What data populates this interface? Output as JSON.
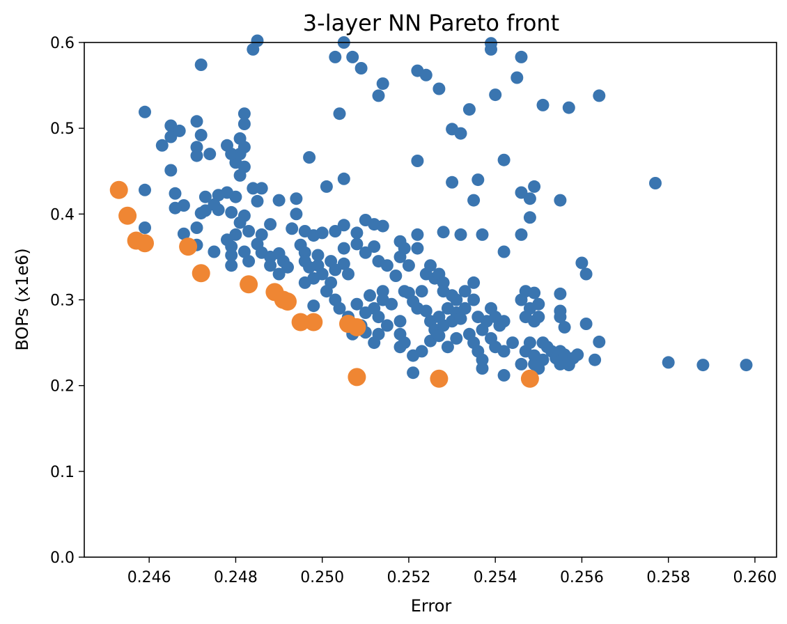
{
  "chart_data": {
    "type": "scatter",
    "title": "3-layer NN Pareto front",
    "xlabel": "Error",
    "ylabel": "BOPs (x1e6)",
    "xlim": [
      0.2445,
      0.2605
    ],
    "ylim": [
      0.0,
      0.6
    ],
    "xticks": [
      "0.246",
      "0.248",
      "0.250",
      "0.252",
      "0.254",
      "0.256",
      "0.258",
      "0.260"
    ],
    "yticks": [
      "0.0",
      "0.1",
      "0.2",
      "0.3",
      "0.4",
      "0.5",
      "0.6"
    ],
    "grid": false,
    "series": [
      {
        "color": "#3a75b0",
        "marker_size": "small",
        "points": [
          [
            0.2484,
            0.592
          ],
          [
            0.2485,
            0.602
          ],
          [
            0.2505,
            0.6
          ],
          [
            0.2503,
            0.583
          ],
          [
            0.2507,
            0.583
          ],
          [
            0.2509,
            0.57
          ],
          [
            0.2539,
            0.592
          ],
          [
            0.2539,
            0.599
          ],
          [
            0.2546,
            0.583
          ],
          [
            0.2545,
            0.559
          ],
          [
            0.2522,
            0.567
          ],
          [
            0.2524,
            0.562
          ],
          [
            0.2527,
            0.546
          ],
          [
            0.2514,
            0.552
          ],
          [
            0.2513,
            0.538
          ],
          [
            0.254,
            0.539
          ],
          [
            0.2472,
            0.574
          ],
          [
            0.2459,
            0.519
          ],
          [
            0.2482,
            0.517
          ],
          [
            0.2504,
            0.517
          ],
          [
            0.2534,
            0.522
          ],
          [
            0.2551,
            0.527
          ],
          [
            0.2557,
            0.524
          ],
          [
            0.2564,
            0.538
          ],
          [
            0.253,
            0.499
          ],
          [
            0.2532,
            0.494
          ],
          [
            0.2465,
            0.503
          ],
          [
            0.2467,
            0.497
          ],
          [
            0.2463,
            0.48
          ],
          [
            0.2465,
            0.49
          ],
          [
            0.2471,
            0.508
          ],
          [
            0.2472,
            0.492
          ],
          [
            0.2471,
            0.478
          ],
          [
            0.2471,
            0.468
          ],
          [
            0.2474,
            0.47
          ],
          [
            0.2478,
            0.48
          ],
          [
            0.2481,
            0.488
          ],
          [
            0.2482,
            0.478
          ],
          [
            0.2481,
            0.47
          ],
          [
            0.248,
            0.46
          ],
          [
            0.2482,
            0.455
          ],
          [
            0.2481,
            0.445
          ],
          [
            0.2479,
            0.47
          ],
          [
            0.2482,
            0.505
          ],
          [
            0.2497,
            0.466
          ],
          [
            0.2522,
            0.462
          ],
          [
            0.2542,
            0.463
          ],
          [
            0.2505,
            0.441
          ],
          [
            0.2501,
            0.432
          ],
          [
            0.2536,
            0.44
          ],
          [
            0.253,
            0.437
          ],
          [
            0.2577,
            0.436
          ],
          [
            0.2546,
            0.425
          ],
          [
            0.2549,
            0.432
          ],
          [
            0.2548,
            0.418
          ],
          [
            0.2555,
            0.416
          ],
          [
            0.2535,
            0.416
          ],
          [
            0.2548,
            0.396
          ],
          [
            0.2546,
            0.376
          ],
          [
            0.2465,
            0.451
          ],
          [
            0.2459,
            0.428
          ],
          [
            0.2466,
            0.424
          ],
          [
            0.2468,
            0.41
          ],
          [
            0.2466,
            0.407
          ],
          [
            0.2473,
            0.42
          ],
          [
            0.2476,
            0.422
          ],
          [
            0.2475,
            0.411
          ],
          [
            0.2478,
            0.425
          ],
          [
            0.248,
            0.42
          ],
          [
            0.2484,
            0.43
          ],
          [
            0.2486,
            0.43
          ],
          [
            0.2485,
            0.415
          ],
          [
            0.2473,
            0.404
          ],
          [
            0.2472,
            0.401
          ],
          [
            0.2476,
            0.405
          ],
          [
            0.2471,
            0.384
          ],
          [
            0.2479,
            0.402
          ],
          [
            0.2482,
            0.398
          ],
          [
            0.2481,
            0.39
          ],
          [
            0.2483,
            0.38
          ],
          [
            0.2486,
            0.376
          ],
          [
            0.2488,
            0.388
          ],
          [
            0.249,
            0.416
          ],
          [
            0.2494,
            0.418
          ],
          [
            0.2494,
            0.4
          ],
          [
            0.2493,
            0.383
          ],
          [
            0.2496,
            0.38
          ],
          [
            0.2498,
            0.375
          ],
          [
            0.25,
            0.378
          ],
          [
            0.2503,
            0.38
          ],
          [
            0.2505,
            0.387
          ],
          [
            0.2508,
            0.378
          ],
          [
            0.251,
            0.393
          ],
          [
            0.2512,
            0.388
          ],
          [
            0.2514,
            0.386
          ],
          [
            0.2518,
            0.368
          ],
          [
            0.2522,
            0.376
          ],
          [
            0.2528,
            0.379
          ],
          [
            0.2532,
            0.376
          ],
          [
            0.2537,
            0.376
          ],
          [
            0.2542,
            0.356
          ],
          [
            0.2459,
            0.384
          ],
          [
            0.2468,
            0.377
          ],
          [
            0.2471,
            0.364
          ],
          [
            0.2475,
            0.356
          ],
          [
            0.2478,
            0.37
          ],
          [
            0.248,
            0.376
          ],
          [
            0.2479,
            0.362
          ],
          [
            0.2479,
            0.352
          ],
          [
            0.2479,
            0.34
          ],
          [
            0.2482,
            0.356
          ],
          [
            0.2483,
            0.345
          ],
          [
            0.2485,
            0.365
          ],
          [
            0.2486,
            0.355
          ],
          [
            0.2488,
            0.35
          ],
          [
            0.249,
            0.354
          ],
          [
            0.2488,
            0.34
          ],
          [
            0.2491,
            0.345
          ],
          [
            0.249,
            0.33
          ],
          [
            0.2492,
            0.338
          ],
          [
            0.2495,
            0.364
          ],
          [
            0.2496,
            0.355
          ],
          [
            0.2496,
            0.345
          ],
          [
            0.2497,
            0.338
          ],
          [
            0.2499,
            0.352
          ],
          [
            0.2499,
            0.34
          ],
          [
            0.25,
            0.33
          ],
          [
            0.2498,
            0.325
          ],
          [
            0.2502,
            0.345
          ],
          [
            0.2503,
            0.335
          ],
          [
            0.2502,
            0.32
          ],
          [
            0.2505,
            0.342
          ],
          [
            0.2506,
            0.33
          ],
          [
            0.2505,
            0.36
          ],
          [
            0.2508,
            0.365
          ],
          [
            0.251,
            0.355
          ],
          [
            0.2512,
            0.362
          ],
          [
            0.2513,
            0.345
          ],
          [
            0.2515,
            0.34
          ],
          [
            0.2518,
            0.35
          ],
          [
            0.2519,
            0.36
          ],
          [
            0.2522,
            0.36
          ],
          [
            0.252,
            0.34
          ],
          [
            0.2517,
            0.328
          ],
          [
            0.2514,
            0.31
          ],
          [
            0.2516,
            0.295
          ],
          [
            0.2512,
            0.29
          ],
          [
            0.2513,
            0.28
          ],
          [
            0.2515,
            0.27
          ],
          [
            0.2518,
            0.275
          ],
          [
            0.2518,
            0.26
          ],
          [
            0.252,
            0.308
          ],
          [
            0.2521,
            0.298
          ],
          [
            0.2522,
            0.29
          ],
          [
            0.2523,
            0.31
          ],
          [
            0.2524,
            0.33
          ],
          [
            0.2525,
            0.34
          ],
          [
            0.2526,
            0.325
          ],
          [
            0.2527,
            0.33
          ],
          [
            0.2528,
            0.32
          ],
          [
            0.2528,
            0.31
          ],
          [
            0.253,
            0.305
          ],
          [
            0.2531,
            0.3
          ],
          [
            0.2524,
            0.287
          ],
          [
            0.2525,
            0.275
          ],
          [
            0.2526,
            0.265
          ],
          [
            0.2527,
            0.28
          ],
          [
            0.2528,
            0.27
          ],
          [
            0.2529,
            0.29
          ],
          [
            0.253,
            0.275
          ],
          [
            0.2531,
            0.285
          ],
          [
            0.2532,
            0.278
          ],
          [
            0.2533,
            0.31
          ],
          [
            0.2533,
            0.29
          ],
          [
            0.2535,
            0.32
          ],
          [
            0.2535,
            0.3
          ],
          [
            0.2536,
            0.28
          ],
          [
            0.2537,
            0.265
          ],
          [
            0.2538,
            0.275
          ],
          [
            0.2539,
            0.29
          ],
          [
            0.254,
            0.28
          ],
          [
            0.2541,
            0.27
          ],
          [
            0.2542,
            0.275
          ],
          [
            0.2525,
            0.252
          ],
          [
            0.2527,
            0.258
          ],
          [
            0.2529,
            0.245
          ],
          [
            0.2531,
            0.255
          ],
          [
            0.2534,
            0.26
          ],
          [
            0.2535,
            0.25
          ],
          [
            0.2536,
            0.24
          ],
          [
            0.2537,
            0.23
          ],
          [
            0.2537,
            0.22
          ],
          [
            0.2539,
            0.255
          ],
          [
            0.254,
            0.245
          ],
          [
            0.2542,
            0.24
          ],
          [
            0.2544,
            0.25
          ],
          [
            0.2542,
            0.212
          ],
          [
            0.2546,
            0.3
          ],
          [
            0.2547,
            0.31
          ],
          [
            0.2549,
            0.308
          ],
          [
            0.255,
            0.295
          ],
          [
            0.2548,
            0.29
          ],
          [
            0.2547,
            0.28
          ],
          [
            0.2549,
            0.275
          ],
          [
            0.255,
            0.28
          ],
          [
            0.2546,
            0.225
          ],
          [
            0.2547,
            0.24
          ],
          [
            0.2548,
            0.25
          ],
          [
            0.2549,
            0.235
          ],
          [
            0.2549,
            0.225
          ],
          [
            0.255,
            0.22
          ],
          [
            0.2551,
            0.23
          ],
          [
            0.2551,
            0.25
          ],
          [
            0.2552,
            0.245
          ],
          [
            0.2553,
            0.24
          ],
          [
            0.2554,
            0.232
          ],
          [
            0.2555,
            0.23
          ],
          [
            0.2555,
            0.24
          ],
          [
            0.2555,
            0.225
          ],
          [
            0.2556,
            0.236
          ],
          [
            0.2557,
            0.228
          ],
          [
            0.2558,
            0.232
          ],
          [
            0.2559,
            0.236
          ],
          [
            0.2556,
            0.268
          ],
          [
            0.2555,
            0.28
          ],
          [
            0.2555,
            0.287
          ],
          [
            0.2555,
            0.307
          ],
          [
            0.256,
            0.343
          ],
          [
            0.2561,
            0.33
          ],
          [
            0.2561,
            0.272
          ],
          [
            0.2564,
            0.251
          ],
          [
            0.2563,
            0.23
          ],
          [
            0.2557,
            0.224
          ],
          [
            0.258,
            0.227
          ],
          [
            0.2588,
            0.224
          ],
          [
            0.2598,
            0.224
          ],
          [
            0.2521,
            0.215
          ],
          [
            0.2521,
            0.235
          ],
          [
            0.2519,
            0.25
          ],
          [
            0.2518,
            0.245
          ],
          [
            0.2523,
            0.24
          ],
          [
            0.2519,
            0.31
          ],
          [
            0.2514,
            0.3
          ],
          [
            0.251,
            0.285
          ],
          [
            0.2508,
            0.295
          ],
          [
            0.2511,
            0.305
          ],
          [
            0.2509,
            0.27
          ],
          [
            0.2506,
            0.28
          ],
          [
            0.2513,
            0.26
          ],
          [
            0.2512,
            0.25
          ],
          [
            0.251,
            0.262
          ],
          [
            0.2507,
            0.26
          ],
          [
            0.2504,
            0.29
          ],
          [
            0.2503,
            0.3
          ],
          [
            0.2501,
            0.31
          ],
          [
            0.2498,
            0.293
          ],
          [
            0.2496,
            0.32
          ]
        ]
      },
      {
        "color": "#ef8633",
        "marker_size": "large",
        "points": [
          [
            0.2453,
            0.428
          ],
          [
            0.2455,
            0.398
          ],
          [
            0.2457,
            0.369
          ],
          [
            0.2459,
            0.366
          ],
          [
            0.2469,
            0.362
          ],
          [
            0.2472,
            0.331
          ],
          [
            0.2483,
            0.318
          ],
          [
            0.2489,
            0.309
          ],
          [
            0.2491,
            0.3
          ],
          [
            0.2492,
            0.298
          ],
          [
            0.2495,
            0.274
          ],
          [
            0.2498,
            0.274
          ],
          [
            0.2506,
            0.272
          ],
          [
            0.2508,
            0.268
          ],
          [
            0.2508,
            0.21
          ],
          [
            0.2527,
            0.208
          ],
          [
            0.2548,
            0.208
          ]
        ]
      }
    ]
  }
}
